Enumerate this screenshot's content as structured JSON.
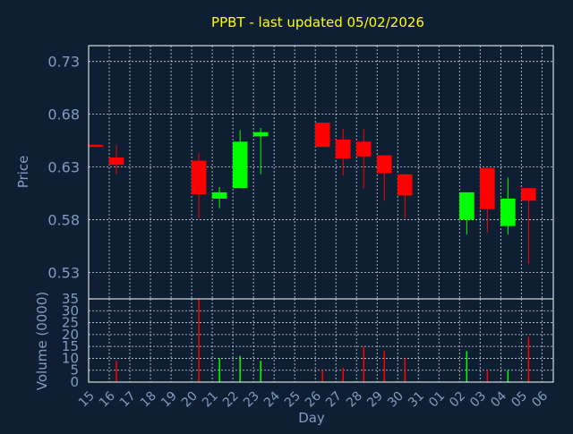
{
  "chart_data": [
    {
      "type": "candlestick",
      "title": "PPBT - last updated 05/02/2026",
      "ylabel": "Price",
      "ylim": [
        0.505,
        0.745
      ],
      "yticks": [
        0.53,
        0.58,
        0.63,
        0.68,
        0.73
      ],
      "ytick_labels": [
        "0.53",
        "0.58",
        "0.63",
        "0.68",
        "0.73"
      ],
      "grid": true,
      "colors": {
        "up": "#00ff00",
        "down": "#ff0000",
        "background": "#0f1f33",
        "grid": "#ffffff",
        "text": "#7f9cc4",
        "title": "#ffff00"
      },
      "x": [
        "15",
        "16",
        "20",
        "21",
        "22",
        "23",
        "26",
        "27",
        "28",
        "29",
        "30",
        "02",
        "03",
        "04",
        "05"
      ],
      "open": [
        0.651,
        0.639,
        0.636,
        0.6,
        0.61,
        0.659,
        0.672,
        0.656,
        0.654,
        0.641,
        0.623,
        0.58,
        0.629,
        0.574,
        0.61
      ],
      "close": [
        0.649,
        0.632,
        0.604,
        0.606,
        0.654,
        0.663,
        0.649,
        0.638,
        0.64,
        0.624,
        0.603,
        0.606,
        0.59,
        0.6,
        0.598
      ],
      "high": [
        0.651,
        0.651,
        0.643,
        0.611,
        0.665,
        0.667,
        0.672,
        0.666,
        0.666,
        0.641,
        0.623,
        0.606,
        0.629,
        0.62,
        0.61
      ],
      "low": [
        0.649,
        0.623,
        0.581,
        0.591,
        0.61,
        0.623,
        0.649,
        0.622,
        0.61,
        0.598,
        0.581,
        0.566,
        0.568,
        0.566,
        0.538
      ]
    },
    {
      "type": "bar",
      "ylabel": "Volume (0000)",
      "ylim": [
        0,
        35
      ],
      "yticks": [
        0,
        5,
        10,
        15,
        20,
        25,
        30,
        35
      ],
      "ytick_labels": [
        "0",
        "5",
        "10",
        "15",
        "20",
        "25",
        "30",
        "35"
      ],
      "xlabel": "Day",
      "categories": [
        "15",
        "16",
        "17",
        "18",
        "19",
        "20",
        "21",
        "22",
        "23",
        "24",
        "25",
        "26",
        "27",
        "28",
        "29",
        "30",
        "31",
        "01",
        "02",
        "03",
        "04",
        "05",
        "06"
      ],
      "values": [
        0,
        9,
        0,
        0,
        0,
        35,
        10,
        11,
        9,
        0,
        0,
        5,
        6,
        15,
        13,
        10,
        0,
        0,
        13,
        5,
        5,
        19,
        0
      ],
      "bar_colors": [
        "#ff0000",
        "#ff0000",
        "#ff0000",
        "#ff0000",
        "#ff0000",
        "#ff0000",
        "#00ff00",
        "#00ff00",
        "#00ff00",
        "#ff0000",
        "#ff0000",
        "#ff0000",
        "#ff0000",
        "#ff0000",
        "#ff0000",
        "#ff0000",
        "#ff0000",
        "#ff0000",
        "#00ff00",
        "#ff0000",
        "#00ff00",
        "#ff0000",
        "#ff0000"
      ],
      "grid": true
    }
  ]
}
